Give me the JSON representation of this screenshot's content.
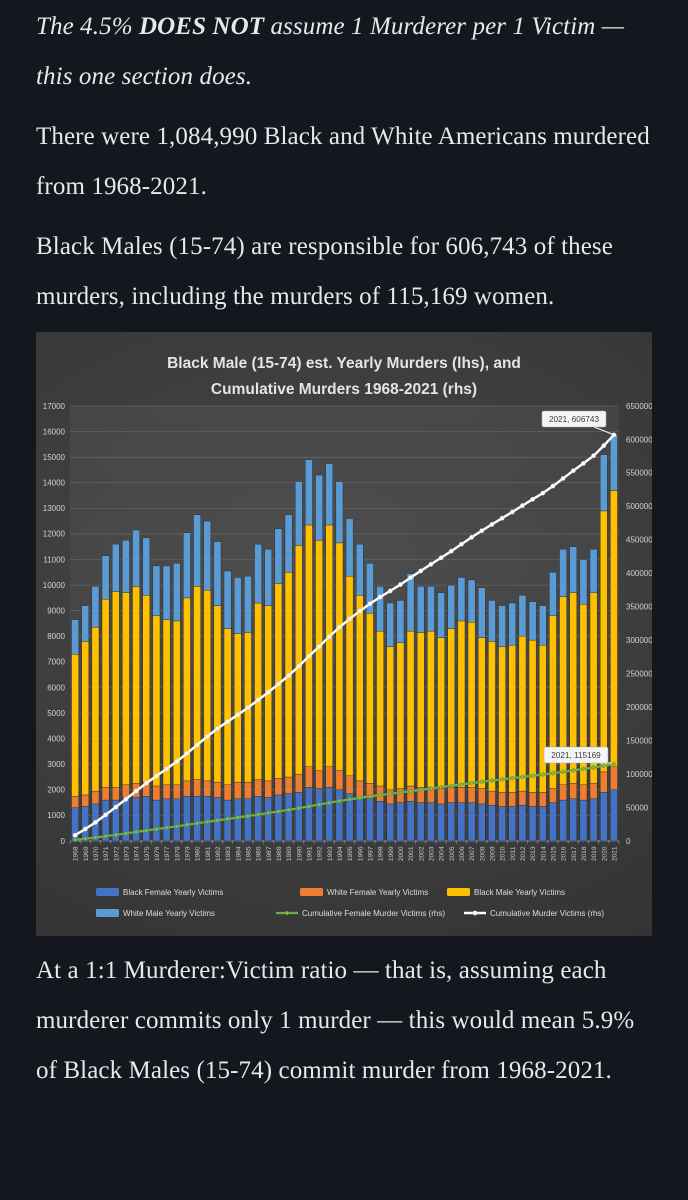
{
  "page": {
    "background": "#15171f",
    "text_color": "#e7e8ee"
  },
  "paragraphs": {
    "p1": {
      "pre": "The 4.5% ",
      "bold": "DOES NOT",
      "post": " assume 1 Murderer per 1 Victim — this one section does."
    },
    "p2": "There were 1,084,990 Black and White Americans murdered from 1968-2021.",
    "p3": "Black Males (15-74) are responsible for 606,743 of these murders, including the murders of 115,169 women.",
    "p4": "At a 1:1 Murderer:Victim ratio — that is, assuming each murderer commits only 1 murder — this would mean 5.9% of Black Males (15-74) commit murder from 1968-2021."
  },
  "chart_data": {
    "type": "bar",
    "subtype": "stacked-bars-with-cumulative-lines",
    "title_lines": [
      "Black Male (15-74) est. Yearly Murders (lhs), and",
      "Cumulative Murders 1968-2021 (rhs)"
    ],
    "left_axis": {
      "min": 0,
      "max": 17000,
      "step": 1000,
      "label_color": "#d2d2d2"
    },
    "right_axis": {
      "min": 0,
      "max": 650000,
      "step": 50000,
      "label_color": "#d2d2d2"
    },
    "grid": true,
    "legend_position": "bottom",
    "years": [
      1968,
      1969,
      1970,
      1971,
      1972,
      1973,
      1974,
      1975,
      1976,
      1977,
      1978,
      1979,
      1980,
      1981,
      1982,
      1983,
      1984,
      1985,
      1986,
      1987,
      1988,
      1989,
      1990,
      1991,
      1992,
      1993,
      1994,
      1995,
      1996,
      1997,
      1998,
      1999,
      2000,
      2001,
      2002,
      2003,
      2004,
      2005,
      2006,
      2007,
      2008,
      2009,
      2010,
      2011,
      2012,
      2013,
      2014,
      2015,
      2016,
      2017,
      2018,
      2019,
      2020,
      2021
    ],
    "series": [
      {
        "name": "Black Female Yearly Victims",
        "type": "bar",
        "axis": "left",
        "color": "#4472C4",
        "values": [
          1300,
          1350,
          1450,
          1600,
          1600,
          1700,
          1700,
          1750,
          1600,
          1650,
          1650,
          1750,
          1750,
          1750,
          1700,
          1600,
          1650,
          1650,
          1750,
          1700,
          1800,
          1850,
          1900,
          2100,
          2050,
          2100,
          2000,
          1850,
          1700,
          1650,
          1550,
          1450,
          1500,
          1550,
          1500,
          1500,
          1450,
          1500,
          1500,
          1500,
          1450,
          1400,
          1350,
          1350,
          1400,
          1350,
          1350,
          1500,
          1600,
          1650,
          1600,
          1650,
          1900,
          2000
        ]
      },
      {
        "name": "White Female Yearly Victims",
        "type": "bar",
        "axis": "left",
        "color": "#ED7D31",
        "values": [
          450,
          450,
          500,
          500,
          500,
          500,
          550,
          550,
          550,
          550,
          550,
          600,
          650,
          600,
          600,
          600,
          650,
          650,
          650,
          650,
          650,
          650,
          700,
          800,
          700,
          800,
          750,
          700,
          650,
          600,
          600,
          550,
          550,
          600,
          600,
          600,
          600,
          600,
          600,
          600,
          600,
          550,
          550,
          550,
          550,
          550,
          550,
          550,
          600,
          600,
          600,
          600,
          800,
          900
        ]
      },
      {
        "name": "Black Male Yearly Victims",
        "type": "bar",
        "axis": "left",
        "color": "#FFC000",
        "values": [
          5550,
          6000,
          6400,
          7350,
          7650,
          7500,
          7700,
          7300,
          6650,
          6450,
          6400,
          7150,
          7550,
          7450,
          6900,
          6100,
          5800,
          5850,
          6900,
          6850,
          7600,
          8000,
          8950,
          9450,
          9000,
          9450,
          8900,
          7800,
          7250,
          6650,
          6050,
          5600,
          5700,
          6050,
          6050,
          6100,
          5900,
          6200,
          6500,
          6450,
          5900,
          5850,
          5700,
          5750,
          6050,
          5950,
          5750,
          6750,
          7350,
          7450,
          7050,
          7450,
          10200,
          10800
        ]
      },
      {
        "name": "White Male Yearly Victims",
        "type": "bar",
        "axis": "left",
        "color": "#5B9BD5",
        "values": [
          1350,
          1400,
          1600,
          1700,
          1850,
          2050,
          2200,
          2250,
          1950,
          2100,
          2250,
          2550,
          2800,
          2700,
          2500,
          2250,
          2200,
          2200,
          2300,
          2200,
          2150,
          2250,
          2500,
          2550,
          2550,
          2400,
          2400,
          2250,
          2000,
          1950,
          1750,
          1700,
          1650,
          2250,
          1800,
          1750,
          1750,
          1700,
          1700,
          1650,
          1950,
          1600,
          1600,
          1650,
          1600,
          1500,
          1550,
          1700,
          1850,
          1800,
          1750,
          1700,
          2200,
          2200
        ]
      },
      {
        "name": "Cumulative Female Murder Victims (rhs)",
        "type": "line",
        "axis": "right",
        "color": "#70AD47",
        "derived_from": "cumulative sum of female yearly victims",
        "final_value": 115169
      },
      {
        "name": "Cumulative Murder Victims (rhs)",
        "type": "line",
        "axis": "right",
        "color": "#FFFFFF",
        "derived_from": "cumulative sum of all yearly victims",
        "final_value": 606743
      }
    ],
    "annotations": [
      {
        "text": "2021, 606743",
        "series": "Cumulative Murder Victims (rhs)"
      },
      {
        "text": "2021, 115169",
        "series": "Cumulative Female Murder Victims (rhs)"
      }
    ]
  }
}
